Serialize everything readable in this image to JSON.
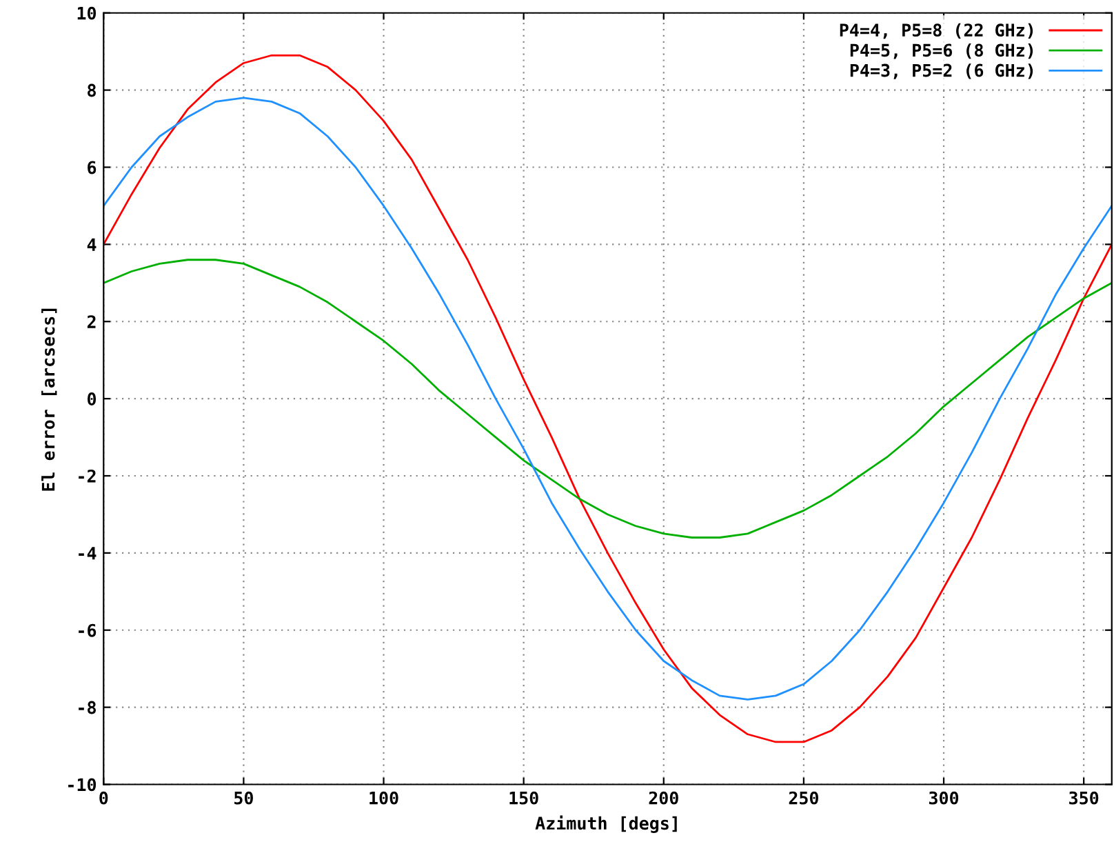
{
  "chart_data": {
    "type": "line",
    "xlabel": "Azimuth [degs]",
    "ylabel": "El error [arcsecs]",
    "x": [
      0,
      10,
      20,
      30,
      40,
      50,
      60,
      70,
      80,
      90,
      100,
      110,
      120,
      130,
      140,
      150,
      160,
      170,
      180,
      190,
      200,
      210,
      220,
      230,
      240,
      250,
      260,
      270,
      280,
      290,
      300,
      310,
      320,
      330,
      340,
      350,
      360
    ],
    "series": [
      {
        "name": "P4=4, P5=8 (22 GHz)",
        "color": "#ff0000",
        "values": [
          4,
          5.3,
          6.5,
          7.5,
          8.2,
          8.7,
          8.9,
          8.9,
          8.6,
          8,
          7.2,
          6.2,
          4.9,
          3.6,
          2.1,
          0.5,
          -1,
          -2.6,
          -4,
          -5.3,
          -6.5,
          -7.5,
          -8.2,
          -8.7,
          -8.9,
          -8.9,
          -8.6,
          -8,
          -7.2,
          -6.2,
          -4.9,
          -3.6,
          -2.1,
          -0.5,
          1,
          2.6,
          4
        ]
      },
      {
        "name": "P4=5, P5=6 (8 GHz)",
        "color": "#00b000",
        "values": [
          3,
          3.3,
          3.5,
          3.6,
          3.6,
          3.5,
          3.2,
          2.9,
          2.5,
          2,
          1.5,
          0.9,
          0.2,
          -0.4,
          -1,
          -1.6,
          -2.1,
          -2.6,
          -3,
          -3.3,
          -3.5,
          -3.6,
          -3.6,
          -3.5,
          -3.2,
          -2.9,
          -2.5,
          -2,
          -1.5,
          -0.9,
          -0.2,
          0.4,
          1,
          1.6,
          2.1,
          2.6,
          3
        ]
      },
      {
        "name": "P4=3, P5=2 (6 GHz)",
        "color": "#1e90ff",
        "values": [
          5,
          6,
          6.8,
          7.3,
          7.7,
          7.8,
          7.7,
          7.4,
          6.8,
          6,
          5,
          3.9,
          2.7,
          1.4,
          0,
          -1.3,
          -2.7,
          -3.9,
          -5,
          -6,
          -6.8,
          -7.3,
          -7.7,
          -7.8,
          -7.7,
          -7.4,
          -6.8,
          -6,
          -5,
          -3.9,
          -2.7,
          -1.4,
          0,
          1.3,
          2.7,
          3.9,
          5
        ]
      }
    ],
    "xlim": [
      0,
      360
    ],
    "xticks": [
      0,
      50,
      100,
      150,
      200,
      250,
      300,
      350
    ],
    "ylim": [
      -10,
      10
    ],
    "yticks": [
      -10,
      -8,
      -6,
      -4,
      -2,
      0,
      2,
      4,
      6,
      8,
      10
    ],
    "grid": true,
    "legend": "top right",
    "marker": "none",
    "line_style": "solid"
  }
}
